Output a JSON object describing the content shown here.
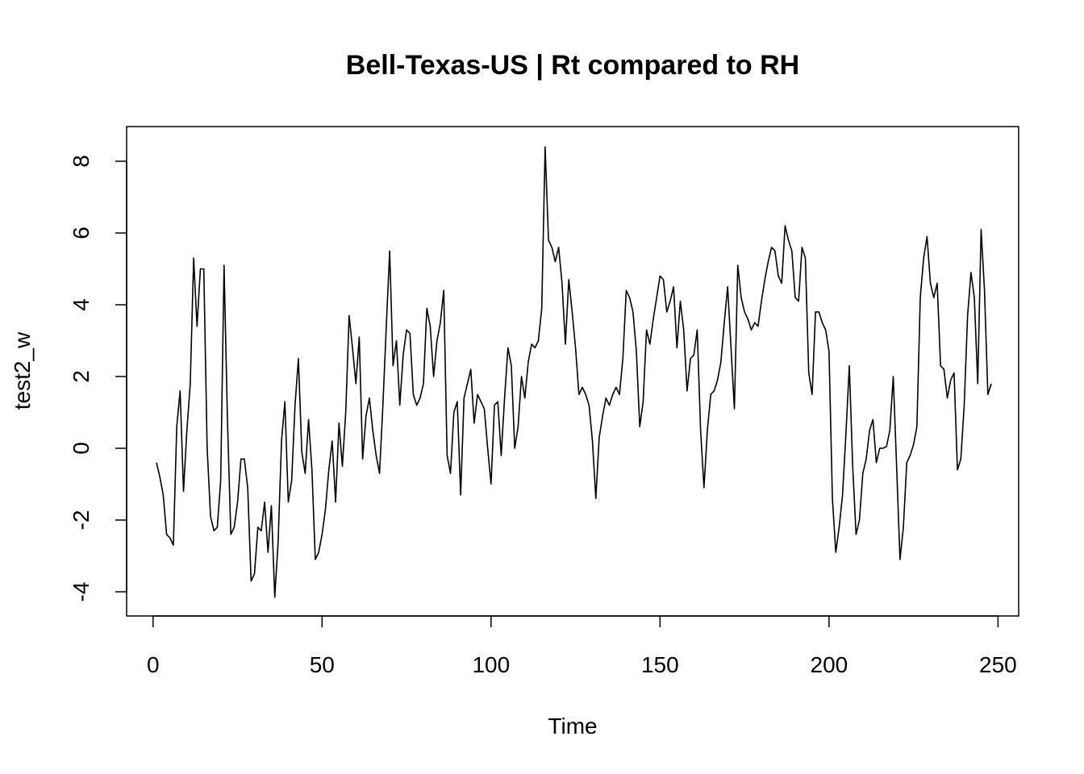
{
  "chart_data": {
    "type": "line",
    "title": "Bell-Texas-US | Rt compared to RH",
    "xlabel": "Time",
    "ylabel": "test2_w",
    "xlim": [
      1,
      248
    ],
    "ylim": [
      -4.2,
      8.5
    ],
    "xticks": [
      0,
      50,
      100,
      150,
      200,
      250
    ],
    "yticks": [
      -4,
      -2,
      0,
      2,
      4,
      6,
      8
    ],
    "grid": false,
    "series": [
      {
        "color": "#000000",
        "x_start": 1,
        "values": [
          -0.4,
          -0.8,
          -1.3,
          -2.4,
          -2.5,
          -2.7,
          0.6,
          1.6,
          -1.2,
          0.5,
          1.8,
          5.3,
          3.4,
          5.0,
          5.0,
          0.0,
          -1.9,
          -2.3,
          -2.2,
          -0.9,
          5.1,
          0.8,
          -2.4,
          -2.2,
          -1.5,
          -0.3,
          -0.3,
          -1.1,
          -3.7,
          -3.5,
          -2.2,
          -2.3,
          -1.5,
          -2.9,
          -1.6,
          -4.15,
          -2.6,
          0.2,
          1.3,
          -1.5,
          -0.9,
          1.2,
          2.5,
          -0.1,
          -0.7,
          0.8,
          -0.6,
          -3.1,
          -2.9,
          -2.4,
          -1.7,
          -0.6,
          0.2,
          -1.5,
          0.7,
          -0.5,
          1.0,
          3.7,
          2.8,
          1.8,
          3.1,
          -0.3,
          0.9,
          1.4,
          0.5,
          -0.2,
          -0.7,
          1.2,
          3.4,
          5.5,
          2.3,
          3.0,
          1.2,
          2.6,
          3.3,
          3.2,
          1.5,
          1.2,
          1.4,
          1.8,
          3.9,
          3.4,
          2.0,
          3.0,
          3.5,
          4.4,
          -0.2,
          -0.7,
          1.0,
          1.3,
          -1.3,
          1.4,
          1.8,
          2.2,
          0.7,
          1.5,
          1.3,
          1.1,
          0.0,
          -1.0,
          1.2,
          1.3,
          -0.2,
          1.4,
          2.8,
          2.3,
          0.0,
          0.6,
          2.0,
          1.4,
          2.4,
          2.9,
          2.8,
          3.0,
          3.9,
          8.4,
          5.8,
          5.6,
          5.2,
          5.6,
          4.6,
          2.9,
          4.7,
          3.8,
          2.8,
          1.5,
          1.7,
          1.5,
          1.2,
          0.2,
          -1.4,
          0.3,
          0.9,
          1.4,
          1.2,
          1.5,
          1.7,
          1.5,
          2.5,
          4.4,
          4.2,
          3.8,
          2.7,
          0.6,
          1.3,
          3.3,
          2.9,
          3.6,
          4.2,
          4.8,
          4.7,
          3.8,
          4.1,
          4.5,
          2.8,
          4.1,
          3.3,
          1.6,
          2.5,
          2.6,
          3.3,
          0.5,
          -1.1,
          0.5,
          1.5,
          1.6,
          1.9,
          2.4,
          3.5,
          4.5,
          2.8,
          1.1,
          5.1,
          4.2,
          3.8,
          3.6,
          3.3,
          3.5,
          3.4,
          4.1,
          4.7,
          5.2,
          5.6,
          5.5,
          4.8,
          4.6,
          6.2,
          5.8,
          5.5,
          4.2,
          4.1,
          5.6,
          5.3,
          2.1,
          1.5,
          3.8,
          3.8,
          3.5,
          3.3,
          2.7,
          -1.4,
          -2.9,
          -2.2,
          -1.3,
          0.4,
          2.3,
          -0.5,
          -2.4,
          -2.0,
          -0.7,
          -0.3,
          0.5,
          0.8,
          -0.4,
          0.0,
          0.0,
          0.05,
          0.5,
          2.0,
          -0.5,
          -3.1,
          -2.2,
          -0.4,
          -0.2,
          0.1,
          0.6,
          4.2,
          5.3,
          5.9,
          4.6,
          4.2,
          4.6,
          2.3,
          2.2,
          1.4,
          1.9,
          2.1,
          -0.6,
          -0.3,
          1.2,
          3.7,
          4.9,
          4.2,
          1.8,
          6.1,
          4.4,
          1.5,
          1.8
        ]
      }
    ]
  }
}
